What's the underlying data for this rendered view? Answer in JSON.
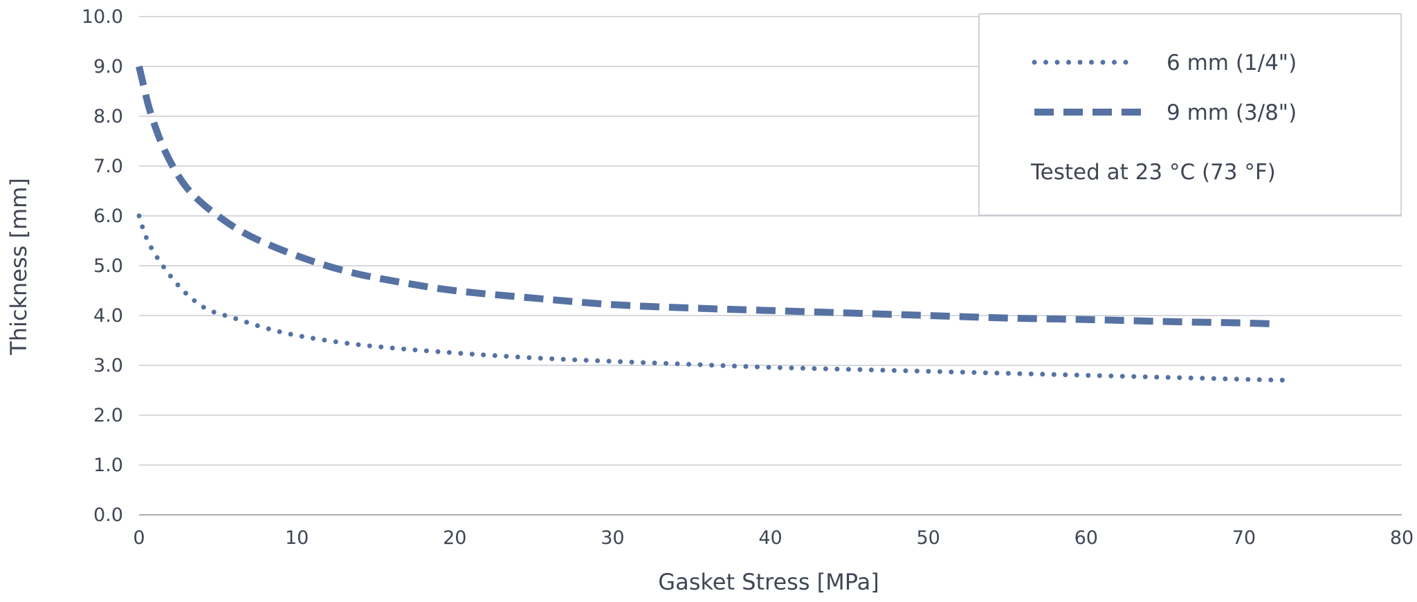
{
  "chart_data": {
    "type": "line",
    "xlabel": "Gasket Stress [MPa]",
    "ylabel": "Thickness [mm]",
    "xlim": [
      0,
      80
    ],
    "ylim": [
      0,
      10
    ],
    "x_ticks": [
      "0",
      "10",
      "20",
      "30",
      "40",
      "50",
      "60",
      "70",
      "80"
    ],
    "y_ticks": [
      "0.0",
      "1.0",
      "2.0",
      "3.0",
      "4.0",
      "5.0",
      "6.0",
      "7.0",
      "8.0",
      "9.0",
      "10.0"
    ],
    "grid": "horizontal",
    "legend_position": "top-right",
    "note": "Tested at 23 °C (73 °F)",
    "series": [
      {
        "name": "6 mm (1/4\")",
        "line_style": "dotted",
        "color": "#5572a3",
        "points": [
          [
            0,
            6.0
          ],
          [
            0.3,
            5.7
          ],
          [
            0.7,
            5.4
          ],
          [
            1.5,
            5.0
          ],
          [
            2.5,
            4.6
          ],
          [
            3.5,
            4.3
          ],
          [
            4.5,
            4.1
          ],
          [
            6,
            3.95
          ],
          [
            8,
            3.75
          ],
          [
            10,
            3.6
          ],
          [
            13,
            3.45
          ],
          [
            16,
            3.35
          ],
          [
            20,
            3.25
          ],
          [
            25,
            3.15
          ],
          [
            30,
            3.08
          ],
          [
            35,
            3.02
          ],
          [
            40,
            2.96
          ],
          [
            45,
            2.92
          ],
          [
            50,
            2.88
          ],
          [
            55,
            2.84
          ],
          [
            60,
            2.8
          ],
          [
            65,
            2.76
          ],
          [
            70,
            2.72
          ],
          [
            73,
            2.7
          ]
        ]
      },
      {
        "name": "9 mm (3/8\")",
        "line_style": "dashed",
        "color": "#5572a3",
        "points": [
          [
            0,
            9.0
          ],
          [
            0.3,
            8.6
          ],
          [
            0.7,
            8.1
          ],
          [
            1.5,
            7.4
          ],
          [
            2.5,
            6.8
          ],
          [
            3.5,
            6.4
          ],
          [
            5,
            6.0
          ],
          [
            7,
            5.6
          ],
          [
            10,
            5.2
          ],
          [
            13,
            4.9
          ],
          [
            16,
            4.7
          ],
          [
            20,
            4.5
          ],
          [
            25,
            4.35
          ],
          [
            30,
            4.22
          ],
          [
            35,
            4.15
          ],
          [
            40,
            4.1
          ],
          [
            45,
            4.05
          ],
          [
            50,
            4.0
          ],
          [
            55,
            3.95
          ],
          [
            60,
            3.92
          ],
          [
            65,
            3.88
          ],
          [
            70,
            3.85
          ],
          [
            72,
            3.83
          ]
        ]
      }
    ]
  }
}
